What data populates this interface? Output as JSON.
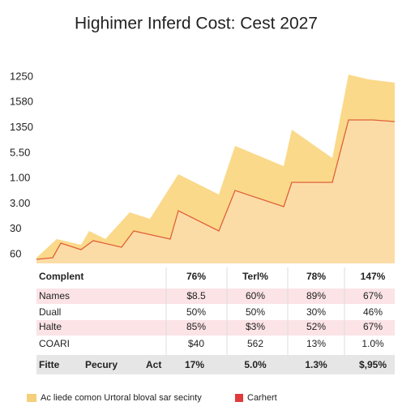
{
  "title": "Highimer Inferd Cost: Cest 2027",
  "axis_labels": [
    "1250",
    "1580",
    "1350",
    "5.50",
    "1.00",
    "3.00",
    "30",
    "60"
  ],
  "table": {
    "header": [
      "Complent",
      "76%",
      "Terl%",
      "78%",
      "147%"
    ],
    "rows": [
      [
        "Names",
        "$8.5",
        "60%",
        "89%",
        "67%"
      ],
      [
        "Duall",
        "50%",
        "50%",
        "30%",
        "46%"
      ],
      [
        "Halte",
        "85%",
        "$3%",
        "52%",
        "67%"
      ],
      [
        "COARI",
        "$40",
        "562",
        "13%",
        "1.0%"
      ]
    ],
    "footer": [
      "Fitte",
      "Pecury",
      "Act",
      "17%",
      "5.0%",
      "1.3%",
      "$,95%"
    ]
  },
  "legend": [
    "Ac liede comon Urtoral bloval sar secinty",
    "Carhert"
  ]
}
